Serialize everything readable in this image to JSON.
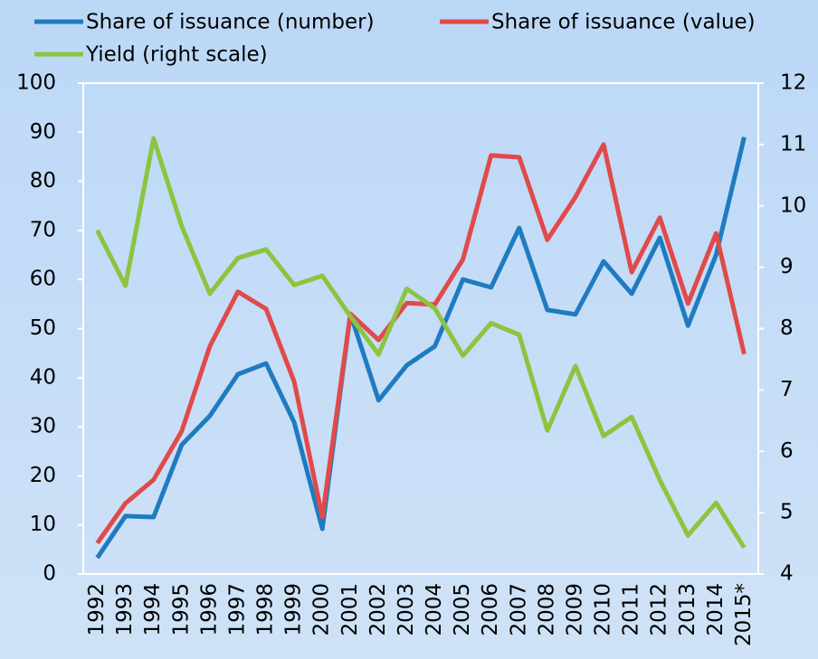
{
  "chart_data": {
    "type": "line",
    "categories": [
      "1992",
      "1993",
      "1994",
      "1995",
      "1996",
      "1997",
      "1998",
      "1999",
      "2000",
      "2001",
      "2002",
      "2003",
      "2004",
      "2005",
      "2006",
      "2007",
      "2008",
      "2009",
      "2010",
      "2011",
      "2012",
      "2013",
      "2014",
      "2015*"
    ],
    "series": [
      {
        "name": "Share of issuance (number)",
        "color": "#1f7bbf",
        "values": [
          3.3,
          11.8,
          11.6,
          26.3,
          32.2,
          40.7,
          42.9,
          30.9,
          9.2,
          53,
          35.4,
          42.5,
          46.4,
          60,
          58.4,
          70.5,
          53.8,
          52.9,
          63.7,
          57.1,
          68.5,
          50.6,
          65,
          89
        ]
      },
      {
        "name": "Share of issuance (value)",
        "color": "#e04a4a",
        "values": [
          6.3,
          14.4,
          19.2,
          29.1,
          46.4,
          57.5,
          54,
          39.2,
          11.6,
          53,
          47.7,
          55.2,
          54.9,
          64.1,
          85.3,
          84.9,
          68.1,
          76.8,
          87.5,
          61.5,
          72.6,
          55.1,
          69.4,
          44.8
        ]
      },
      {
        "name": "Yield (right scale)",
        "color": "#8cc43f",
        "axis": "y2",
        "values": [
          9.6,
          8.7,
          11.1,
          9.67,
          8.57,
          9.15,
          9.29,
          8.71,
          8.86,
          8.2,
          7.58,
          8.65,
          8.33,
          7.56,
          8.09,
          7.9,
          6.34,
          7.39,
          6.25,
          6.56,
          5.53,
          4.63,
          5.16,
          4.43
        ]
      }
    ],
    "ylim": [
      0,
      100
    ],
    "yticks": [
      0,
      10,
      20,
      30,
      40,
      50,
      60,
      70,
      80,
      90,
      100
    ],
    "y2lim": [
      4,
      12
    ],
    "y2ticks": [
      4,
      5,
      6,
      7,
      8,
      9,
      10,
      11,
      12
    ]
  }
}
